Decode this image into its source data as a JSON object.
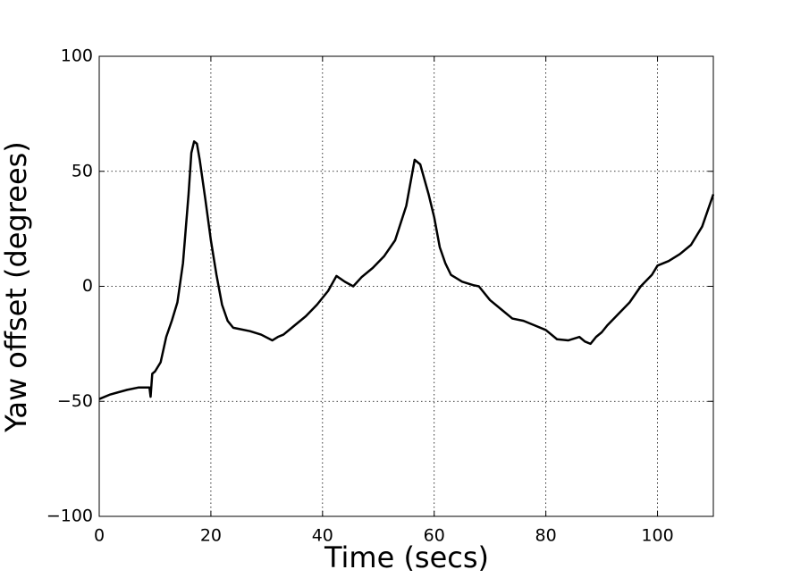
{
  "chart_data": {
    "type": "line",
    "x_label": "Time (secs)",
    "y_label": "Yaw offset (degrees)",
    "x": [
      0,
      2,
      5,
      7,
      9,
      9.2,
      9.5,
      10,
      11,
      12,
      13,
      14,
      15,
      16,
      16.5,
      17,
      17.5,
      18,
      19,
      20,
      21,
      22,
      23,
      24,
      25,
      27,
      29,
      31,
      32,
      33,
      35,
      37,
      39,
      41,
      42.5,
      44,
      45.5,
      47,
      49,
      51,
      53,
      55,
      56.5,
      57.5,
      59,
      60,
      61,
      62,
      63,
      65,
      67,
      68,
      70,
      72,
      74,
      76,
      78,
      80,
      82,
      84,
      86,
      87,
      88,
      89,
      90,
      91,
      93,
      95,
      97,
      99,
      100,
      102,
      104,
      106,
      108,
      110
    ],
    "series": [
      {
        "color": "#000000",
        "values": [
          -49,
          -47,
          -45,
          -44,
          -44,
          -48,
          -38,
          -37,
          -33,
          -22,
          -15,
          -7,
          10,
          40,
          58,
          63,
          62,
          55,
          38,
          20,
          5,
          -8,
          -15,
          -18,
          -18.5,
          -19.5,
          -21,
          -23.5,
          -22,
          -21,
          -17,
          -13,
          -8,
          -2,
          4.5,
          2,
          0,
          4,
          8,
          13,
          20,
          35,
          55,
          53,
          40,
          30,
          17,
          10,
          5,
          2,
          0.5,
          0,
          -6,
          -10,
          -14,
          -15,
          -17,
          -19,
          -23,
          -23.5,
          -22,
          -24,
          -25,
          -22,
          -20,
          -17,
          -12,
          -7,
          0,
          5,
          9,
          11,
          14,
          18,
          26,
          40
        ]
      }
    ],
    "xlim": [
      0,
      110
    ],
    "xticks": [
      0,
      20,
      40,
      60,
      80,
      100
    ],
    "ylim": [
      -100,
      100
    ],
    "yticks": [
      {
        "value": -100,
        "label": "−100"
      },
      {
        "value": -50,
        "label": "−50"
      },
      0,
      50,
      100
    ],
    "grid": true
  }
}
